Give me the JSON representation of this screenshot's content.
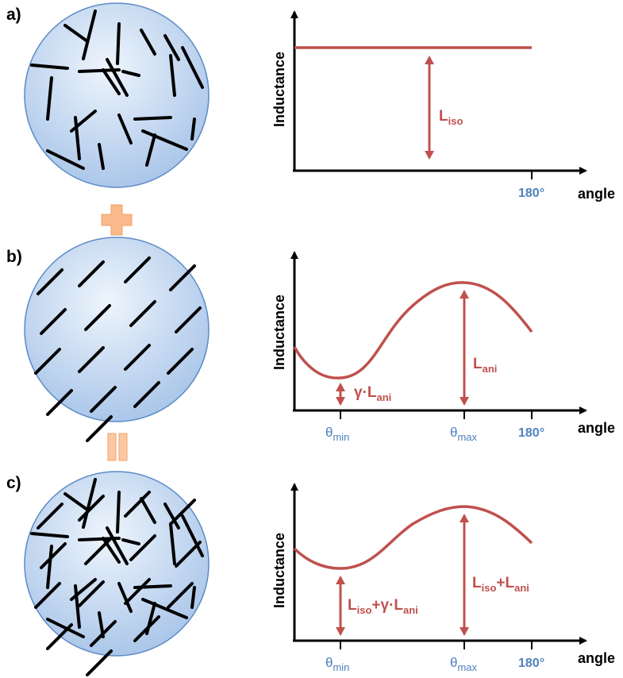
{
  "colors": {
    "curve": "#C0504D",
    "tick_blue": "#4F81BD",
    "disc_fill_light": "#E8F1FB",
    "disc_fill_dark": "#A9C5E8",
    "disc_stroke": "#5B8BC6",
    "plus_fill": "#F9B98A",
    "plus_stroke": "#F2A06A"
  },
  "panels": [
    {
      "label": "a)",
      "ylabel": "Inductance",
      "xlabel": "angle",
      "tick_180": "180°",
      "ann1": {
        "main": "L",
        "sub": "iso"
      }
    },
    {
      "label": "b)",
      "ylabel": "Inductance",
      "xlabel": "angle",
      "tick_180": "180°",
      "theta_min": {
        "main": "θ",
        "sub": "min"
      },
      "theta_max": {
        "main": "θ",
        "sub": "max"
      },
      "ann_min": {
        "pre": "γ·L",
        "sub": "ani"
      },
      "ann_max": {
        "main": "L",
        "sub": "ani"
      }
    },
    {
      "label": "c)",
      "ylabel": "Inductance",
      "xlabel": "angle",
      "tick_180": "180°",
      "theta_min": {
        "main": "θ",
        "sub": "min"
      },
      "theta_max": {
        "main": "θ",
        "sub": "max"
      },
      "ann_min": {
        "a": "L",
        "a_sub": "iso",
        "b": "+γ·L",
        "b_sub": "ani"
      },
      "ann_max": {
        "a": "L",
        "a_sub": "iso",
        "b": "+L",
        "b_sub": "ani"
      }
    }
  ],
  "operators": {
    "between_a_b": "plus-sign",
    "between_b_c": "equals-sign"
  }
}
